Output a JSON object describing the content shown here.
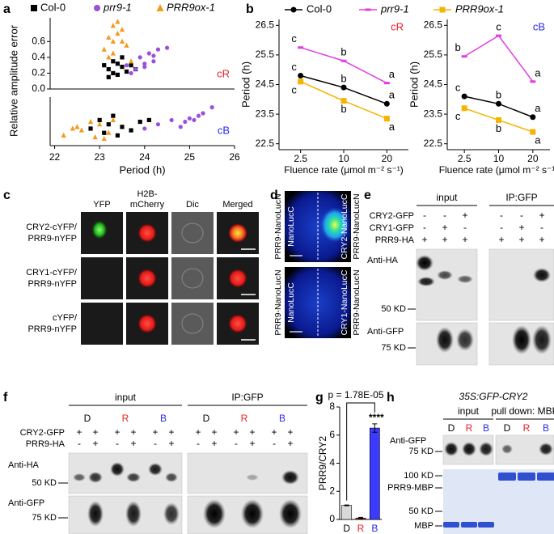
{
  "chart_data": [
    {
      "type": "scatter",
      "label": "a",
      "xlabel": "Period (h)",
      "ylabel": "Relative amplitude error",
      "xlim": [
        21.9,
        26
      ],
      "xticks": [
        22,
        23,
        24,
        25,
        26
      ],
      "panels": [
        {
          "annotation": "cR",
          "annotation_color": "#e8202a",
          "ylim": [
            0,
            0.9
          ],
          "yticks": [
            {
              "value": 0,
              "label": "0.0"
            },
            0.2,
            0.4,
            0.6
          ]
        },
        {
          "annotation": "cB",
          "annotation_color": "#2a2ae8",
          "ylim": [
            0,
            0.57
          ]
        }
      ],
      "series": [
        {
          "name": "Col-0",
          "color": "#000000",
          "marker": "square",
          "points": [
            {
              "x": [
                23.1,
                23.2,
                23.3,
                23.3,
                23.4,
                23.5,
                23.5,
                23.6,
                23.7,
                23.2,
                23.4,
                23.8
              ],
              "values": [
                0.3,
                0.25,
                0.2,
                0.35,
                0.18,
                0.28,
                0.4,
                0.22,
                0.3,
                0.15,
                0.32,
                0.25
              ]
            },
            {
              "x": [
                22.8,
                23.0,
                23.1,
                23.2,
                23.3,
                23.5,
                23.7,
                23.9,
                24.1,
                23.4
              ],
              "values": [
                0.2,
                0.3,
                0.15,
                0.25,
                0.35,
                0.22,
                0.18,
                0.28,
                0.3,
                0.12
              ]
            }
          ]
        },
        {
          "name": "prr9-1",
          "color": "#9b4fdc",
          "marker": "circle",
          "points": [
            {
              "x": [
                23.6,
                23.8,
                23.9,
                24.0,
                24.1,
                24.2,
                24.3,
                24.5,
                23.7,
                24.0,
                24.2
              ],
              "values": [
                0.3,
                0.25,
                0.4,
                0.32,
                0.45,
                0.35,
                0.5,
                0.52,
                0.2,
                0.28,
                0.42
              ]
            },
            {
              "x": [
                24.3,
                24.6,
                24.8,
                25.0,
                25.1,
                25.2,
                25.3,
                25.5,
                24.9,
                24.0
              ],
              "values": [
                0.25,
                0.3,
                0.22,
                0.32,
                0.3,
                0.35,
                0.38,
                0.45,
                0.28,
                0.2
              ]
            }
          ]
        },
        {
          "name": "PRR9ox-1",
          "color": "#f39a1e",
          "marker": "triangle",
          "points": [
            {
              "x": [
                23.1,
                23.2,
                23.3,
                23.4,
                23.5,
                23.3,
                23.4,
                23.6,
                23.2,
                23.5,
                23.7,
                23.3
              ],
              "values": [
                0.5,
                0.65,
                0.8,
                0.7,
                0.6,
                0.45,
                0.85,
                0.55,
                0.4,
                0.75,
                0.35,
                0.6
              ]
            },
            {
              "x": [
                22.2,
                22.4,
                22.6,
                22.8,
                22.9,
                23.0,
                23.2,
                23.3,
                23.1,
                22.5
              ],
              "values": [
                0.12,
                0.2,
                0.18,
                0.28,
                0.1,
                0.25,
                0.15,
                0.3,
                0.08,
                0.22
              ]
            }
          ]
        }
      ]
    },
    {
      "type": "line",
      "label": "b",
      "categories": [
        "2.5",
        "10",
        "20"
      ],
      "xlabel": "Fluence rate (μmol m⁻² s⁻¹)",
      "ylabel": "Period (h)",
      "ylim": [
        22.3,
        26.7
      ],
      "yticks": [
        22.5,
        23.5,
        24.5,
        25.5,
        26.5
      ],
      "legend": [
        {
          "name": "Col-0",
          "color": "#000000",
          "marker": "circle"
        },
        {
          "name": "prr9-1",
          "color": "#e23de2",
          "marker": "dash"
        },
        {
          "name": "PRR9ox-1",
          "color": "#f5b400",
          "marker": "square"
        }
      ],
      "panels": [
        {
          "annotation": "cR",
          "annotation_color": "#e8202a",
          "series": [
            {
              "values": [
                24.8,
                24.4,
                23.85
              ],
              "letters": [
                "c",
                "b",
                "a"
              ]
            },
            {
              "values": [
                25.75,
                25.3,
                24.55
              ],
              "letters": [
                "c",
                "b",
                "a"
              ]
            },
            {
              "values": [
                24.6,
                23.95,
                23.35
              ],
              "letters": [
                "c",
                "b",
                "a"
              ]
            }
          ]
        },
        {
          "annotation": "cB",
          "annotation_color": "#2a2ae8",
          "series": [
            {
              "values": [
                24.1,
                23.85,
                23.4
              ],
              "letters": [
                "c",
                "b",
                "a"
              ]
            },
            {
              "values": [
                25.45,
                26.15,
                24.6
              ],
              "letters": [
                "b",
                "c",
                "a"
              ]
            },
            {
              "values": [
                23.7,
                23.3,
                22.9
              ],
              "letters": [
                "c",
                "b",
                "a"
              ]
            }
          ]
        }
      ]
    },
    {
      "type": "bar",
      "label": "g",
      "categories": [
        "D",
        "R",
        "B"
      ],
      "category_colors": [
        "#000000",
        "#e8202a",
        "#2a2ae8"
      ],
      "colors": [
        "#d9d9d9",
        "#e8202a",
        "#3b3bff"
      ],
      "values": [
        1,
        0.1,
        6.5
      ],
      "errors": [
        0.03,
        0.05,
        0.3
      ],
      "ylim": [
        0,
        8
      ],
      "yticks": [
        0,
        2,
        4,
        6,
        8
      ],
      "ylabel": "PRR9/CRY2",
      "annotation": "p = 1.78E-05",
      "significance": "****"
    }
  ],
  "panels": {
    "c": {
      "label": "c",
      "columns": [
        [
          "YFP"
        ],
        [
          "H2B-",
          "mCherry"
        ],
        [
          "Dic"
        ],
        [
          "Merged"
        ]
      ],
      "rows": [
        [
          "CRY2-cYFP/",
          "PRR9-nYFP"
        ],
        [
          "CRY1-cYFP/",
          "PRR9-nYFP"
        ],
        [
          "cYFP/",
          "PRR9-nYFP"
        ]
      ]
    },
    "d": {
      "label": "d",
      "rows": [
        {
          "outer_left": "PRR9-NanoLucN",
          "inner_left": "NanoLucC",
          "inner_right": "CRY2-NanoLucC",
          "outer_right": "PRR9-NanoLucN"
        },
        {
          "outer_left": "PRR9-NanoLucN",
          "inner_left": "NanoLucC",
          "inner_right": "CRY1-NanoLucC",
          "outer_right": "PRR9-NanoLucN"
        }
      ]
    },
    "e": {
      "label": "e",
      "groups": [
        "input",
        "IP:GFP"
      ],
      "rows": [
        {
          "name": "CRY2-GFP",
          "signs": [
            "-",
            "-",
            "+",
            "-",
            "-",
            "+"
          ]
        },
        {
          "name": "CRY1-GFP",
          "signs": [
            "-",
            "+",
            "-",
            "-",
            "+",
            "-"
          ]
        },
        {
          "name": "PRR9-HA",
          "signs": [
            "+",
            "+",
            "+",
            "+",
            "+",
            "+"
          ]
        }
      ],
      "blots": [
        {
          "antibody": "Anti-HA",
          "marker": "50 KD"
        },
        {
          "antibody": "Anti-GFP",
          "marker": "75 KD"
        }
      ]
    },
    "f": {
      "label": "f",
      "groups": [
        "input",
        "IP:GFP"
      ],
      "conditions": [
        "D",
        "R",
        "B",
        "D",
        "R",
        "B"
      ],
      "condition_colors": [
        "#000000",
        "#e8202a",
        "#2a2ae8",
        "#000000",
        "#e8202a",
        "#2a2ae8"
      ],
      "rows": [
        {
          "name": "CRY2-GFP",
          "signs": [
            "+",
            "+",
            "+",
            "+",
            "+",
            "+",
            "+",
            "+",
            "+",
            "+",
            "+",
            "+"
          ]
        },
        {
          "name": "PRR9-HA",
          "signs": [
            "-",
            "+",
            "-",
            "+",
            "-",
            "+",
            "-",
            "+",
            "-",
            "+",
            "-",
            "+"
          ]
        }
      ],
      "blots": [
        {
          "antibody": "Anti-HA",
          "marker": "50 KD"
        },
        {
          "antibody": "Anti-GFP",
          "marker": "75 KD"
        }
      ]
    },
    "h": {
      "label": "h",
      "construct": "35S:GFP-CRY2",
      "groups": [
        "input",
        "pull down: MBP"
      ],
      "conditions": [
        "D",
        "R",
        "B",
        "D",
        "R",
        "B"
      ],
      "condition_colors": [
        "#000000",
        "#e8202a",
        "#2a2ae8",
        "#000000",
        "#e8202a",
        "#2a2ae8"
      ],
      "blots": [
        {
          "antibody": "Anti-GFP",
          "marker": "75 KD"
        }
      ],
      "gel_markers": [
        "100 KD",
        "PRR9-MBP",
        "50 KD",
        "MBP"
      ]
    }
  }
}
